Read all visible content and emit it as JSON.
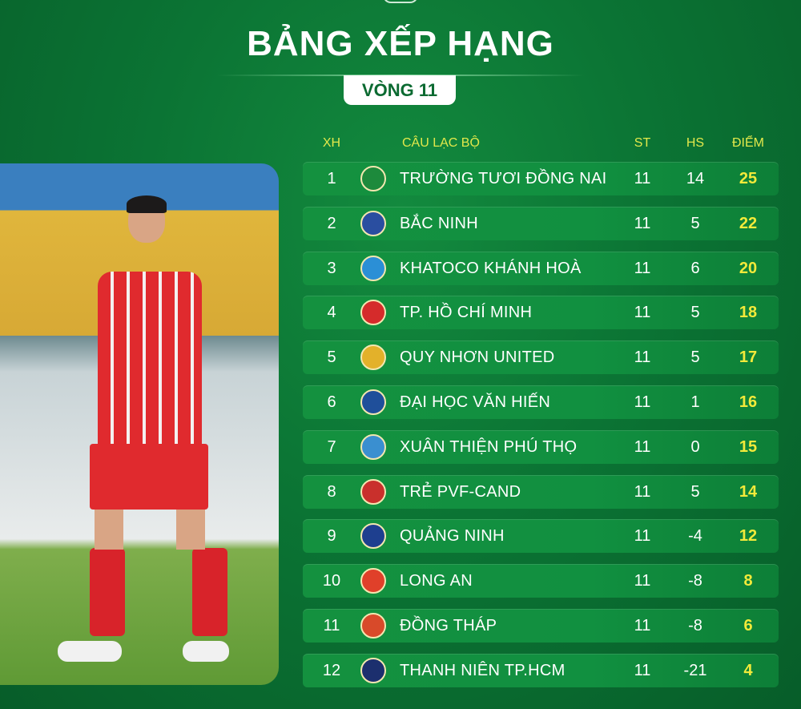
{
  "header": {
    "title": "BẢNG XẾP HẠNG",
    "round": "VÒNG 11"
  },
  "columns": {
    "rank": "XH",
    "club": "CÂU LẠC BỘ",
    "played": "ST",
    "goal_diff": "HS",
    "points": "ĐIỂM"
  },
  "colors": {
    "background": "#0b7434",
    "points": "#f2ea3a",
    "header_text": "#e2e84b"
  },
  "standings": [
    {
      "rank": "1",
      "club": "TRƯỜNG TƯƠI ĐỒNG NAI",
      "played": "11",
      "gd": "14",
      "points": "25",
      "logo_color": "#1d8a3c"
    },
    {
      "rank": "2",
      "club": "BẮC NINH",
      "played": "11",
      "gd": "5",
      "points": "22",
      "logo_color": "#2a4ea0"
    },
    {
      "rank": "3",
      "club": "KHATOCO KHÁNH HOÀ",
      "played": "11",
      "gd": "6",
      "points": "20",
      "logo_color": "#2b8fd6"
    },
    {
      "rank": "4",
      "club": "TP. HỒ CHÍ MINH",
      "played": "11",
      "gd": "5",
      "points": "18",
      "logo_color": "#d52b2b"
    },
    {
      "rank": "5",
      "club": "QUY NHƠN UNITED",
      "played": "11",
      "gd": "5",
      "points": "17",
      "logo_color": "#e3b12a"
    },
    {
      "rank": "6",
      "club": "ĐẠI HỌC VĂN HIẾN",
      "played": "11",
      "gd": "1",
      "points": "16",
      "logo_color": "#1f4f9a"
    },
    {
      "rank": "7",
      "club": "XUÂN THIỆN PHÚ THỌ",
      "played": "11",
      "gd": "0",
      "points": "15",
      "logo_color": "#3a8fd0"
    },
    {
      "rank": "8",
      "club": "TRẺ PVF-CAND",
      "played": "11",
      "gd": "5",
      "points": "14",
      "logo_color": "#c9302c"
    },
    {
      "rank": "9",
      "club": "QUẢNG NINH",
      "played": "11",
      "gd": "-4",
      "points": "12",
      "logo_color": "#1e3f8f"
    },
    {
      "rank": "10",
      "club": "LONG AN",
      "played": "11",
      "gd": "-8",
      "points": "8",
      "logo_color": "#e0402a"
    },
    {
      "rank": "11",
      "club": "ĐỒNG THÁP",
      "played": "11",
      "gd": "-8",
      "points": "6",
      "logo_color": "#d84a2a"
    },
    {
      "rank": "12",
      "club": "THANH NIÊN TP.HCM",
      "played": "11",
      "gd": "-21",
      "points": "4",
      "logo_color": "#1c2f6e"
    }
  ]
}
